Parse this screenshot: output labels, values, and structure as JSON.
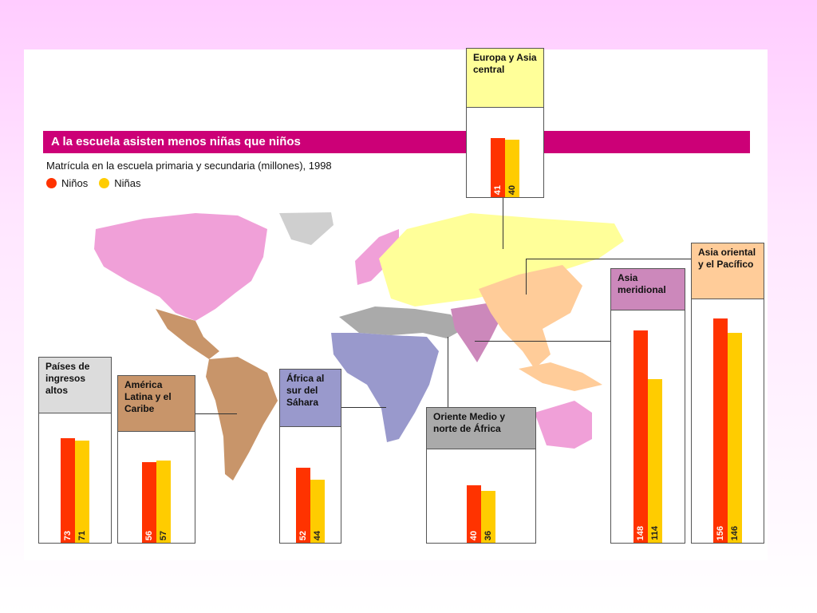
{
  "title": "A la escuela asisten menos niñas que niños",
  "subtitle": "Matrícula en la escuela primaria y secundaria (millones), 1998",
  "legend": {
    "boys": "Niños",
    "girls": "Niñas"
  },
  "colors": {
    "boys": "#ff3300",
    "girls": "#ffcc00",
    "title_bar": "#cc0077"
  },
  "chart_data": {
    "type": "bar",
    "title": "A la escuela asisten menos niñas que niños",
    "subtitle": "Matrícula en la escuela primaria y secundaria (millones), 1998",
    "categories": [
      "Países de ingresos altos",
      "América Latina y el Caribe",
      "África al sur del Sáhara",
      "Oriente Medio y norte de África",
      "Asia meridional",
      "Asia oriental y el Pacífico",
      "Europa y Asia central"
    ],
    "series": [
      {
        "name": "Niños",
        "values": [
          73,
          56,
          52,
          40,
          148,
          156,
          41
        ]
      },
      {
        "name": "Niñas",
        "values": [
          71,
          57,
          44,
          36,
          114,
          146,
          40
        ]
      }
    ],
    "regions": [
      {
        "key": "high",
        "label": "Países de ingresos altos",
        "label_color": "#dcdcdc",
        "boys": 73,
        "girls": 71
      },
      {
        "key": "latam",
        "label": "América Latina y el Caribe",
        "label_color": "#c8956a",
        "boys": 56,
        "girls": 57
      },
      {
        "key": "africa",
        "label": "África al sur del Sáhara",
        "label_color": "#9999cc",
        "boys": 52,
        "girls": 44
      },
      {
        "key": "mena",
        "label": "Oriente Medio y norte de África",
        "label_color": "#aaaaaa",
        "boys": 40,
        "girls": 36
      },
      {
        "key": "south",
        "label": "Asia meridional",
        "label_color": "#cc88bb",
        "boys": 148,
        "girls": 114
      },
      {
        "key": "east",
        "label": "Asia oriental y el Pacífico",
        "label_color": "#ffcc99",
        "boys": 156,
        "girls": 146
      },
      {
        "key": "europe",
        "label": "Europa y Asia central",
        "label_color": "#ffff99",
        "boys": 41,
        "girls": 40
      }
    ]
  }
}
